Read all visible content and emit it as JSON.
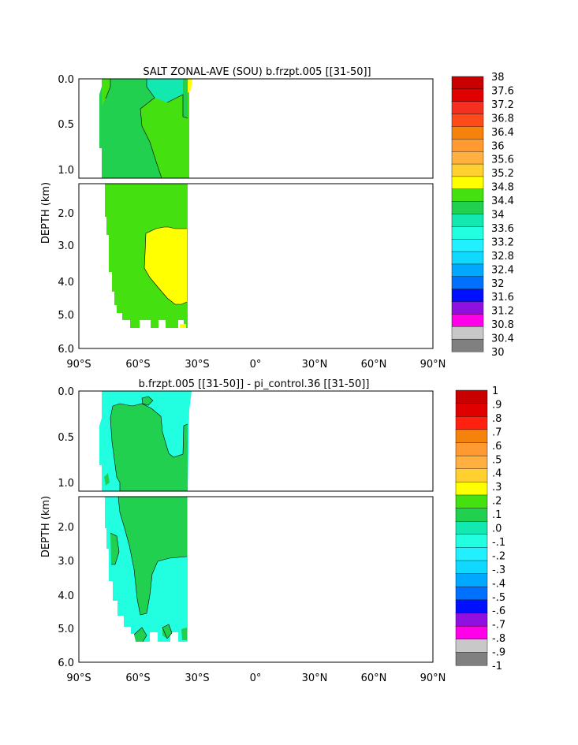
{
  "chart_data": [
    {
      "type": "heatmap",
      "title": "SALT ZONAL-AVE (SOU) b.frzpt.005 [[31-50]]",
      "ylabel": "DEPTH (km)",
      "xlabel": "",
      "x_ticks": [
        "90°S",
        "60°S",
        "30°S",
        "0°",
        "30°N",
        "60°N",
        "90°N"
      ],
      "x_values": [
        -90,
        -60,
        -30,
        0,
        30,
        60,
        90
      ],
      "xlim": [
        -90,
        90
      ],
      "upper_y_ticks": [
        "0.0",
        "0.5",
        "1.0"
      ],
      "upper_y_values": [
        0,
        0.5,
        1.0
      ],
      "lower_y_ticks": [
        "2.0",
        "3.0",
        "4.0",
        "5.0",
        "6.0"
      ],
      "lower_y_values": [
        2,
        3,
        4,
        5,
        6
      ],
      "ylim_upper": [
        0,
        1.1
      ],
      "ylim_lower": [
        1.1,
        6.0
      ],
      "colorbar_labels": [
        "38",
        "37.6",
        "37.2",
        "36.8",
        "36.4",
        "36",
        "35.6",
        "35.2",
        "34.8",
        "34.4",
        "34",
        "33.6",
        "33.2",
        "32.8",
        "32.4",
        "32",
        "31.6",
        "31.2",
        "30.8",
        "30.4",
        "30"
      ],
      "colorbar_colors": [
        "#c80000",
        "#e00000",
        "#f53020",
        "#ff4a1a",
        "#f5820a",
        "#ff9a30",
        "#ffb040",
        "#ffd030",
        "#ffff00",
        "#44e010",
        "#22d050",
        "#12e8b0",
        "#22ffe0",
        "#20f0ff",
        "#10d8ff",
        "#00a8ff",
        "#0070ff",
        "#0010ff",
        "#9010e0",
        "#ff00e8",
        "#c8c8c8",
        "#808080"
      ]
    },
    {
      "type": "heatmap",
      "title": "b.frzpt.005 [[31-50]] - pi_control.36 [[31-50]]",
      "ylabel": "DEPTH (km)",
      "xlabel": "",
      "x_ticks": [
        "90°S",
        "60°S",
        "30°S",
        "0°",
        "30°N",
        "60°N",
        "90°N"
      ],
      "x_values": [
        -90,
        -60,
        -30,
        0,
        30,
        60,
        90
      ],
      "xlim": [
        -90,
        90
      ],
      "upper_y_ticks": [
        "0.0",
        "0.5",
        "1.0"
      ],
      "upper_y_values": [
        0,
        0.5,
        1.0
      ],
      "lower_y_ticks": [
        "2.0",
        "3.0",
        "4.0",
        "5.0",
        "6.0"
      ],
      "lower_y_values": [
        2,
        3,
        4,
        5,
        6
      ],
      "ylim_upper": [
        0,
        1.1
      ],
      "ylim_lower": [
        1.1,
        6.0
      ],
      "colorbar_labels": [
        "1",
        ".9",
        ".8",
        ".7",
        ".6",
        ".5",
        ".4",
        ".3",
        ".2",
        ".1",
        ".0",
        "-.1",
        "-.2",
        "-.3",
        "-.4",
        "-.5",
        "-.6",
        "-.7",
        "-.8",
        "-.9",
        "-1"
      ],
      "colorbar_colors": [
        "#c80000",
        "#e00000",
        "#ff2010",
        "#f5820a",
        "#ff9a30",
        "#ffb040",
        "#ffd030",
        "#ffff00",
        "#44e010",
        "#22d050",
        "#12e8b0",
        "#22ffe0",
        "#20f0ff",
        "#10d8ff",
        "#00a8ff",
        "#0070ff",
        "#0010ff",
        "#9010e0",
        "#ff00e8",
        "#c8c8c8",
        "#808080"
      ]
    }
  ]
}
